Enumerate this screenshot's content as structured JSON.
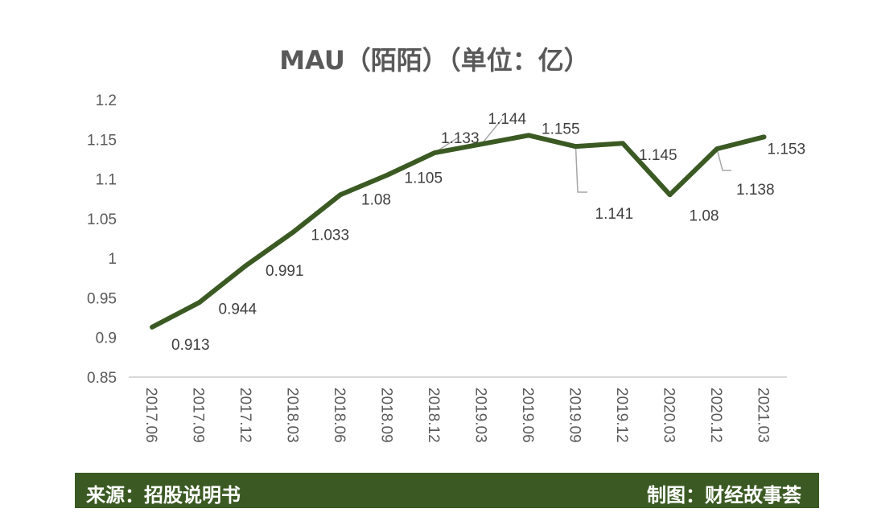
{
  "title": "MAU（陌陌）（单位：亿）",
  "footer": {
    "source": "来源：招股说明书",
    "credit": "制图：财经故事荟"
  },
  "colors": {
    "line": "#3b5a23",
    "footer_bg": "#3b5a23",
    "axis_text": "#595959",
    "axis_line": "#d9d9d9",
    "leader_line": "#a6a6a6"
  },
  "chart_data": {
    "type": "line",
    "title": "MAU（陌陌）（单位：亿）",
    "xlabel": "",
    "ylabel": "",
    "categories": [
      "2017.06",
      "2017.09",
      "2017.12",
      "2018.03",
      "2018.06",
      "2018.09",
      "2018.12",
      "2019.03",
      "2019.06",
      "2019.09",
      "2019.12",
      "2020.03",
      "2020.12",
      "2021.03"
    ],
    "series": [
      {
        "name": "MAU（陌陌）",
        "values": [
          0.913,
          0.944,
          0.991,
          1.033,
          1.08,
          1.105,
          1.133,
          1.144,
          1.155,
          1.141,
          1.145,
          1.08,
          1.138,
          1.153
        ]
      }
    ],
    "ylim": [
      0.85,
      1.2
    ],
    "yticks": [
      "0.85",
      "0.9",
      "0.95",
      "1",
      "1.05",
      "1.1",
      "1.15",
      "1.2"
    ],
    "grid": false,
    "legend": null,
    "data_labels": [
      "0.913",
      "0.944",
      "0.991",
      "1.033",
      "1.08",
      "1.105",
      "1.133",
      "1.144",
      "1.155",
      "1.141",
      "1.145",
      "1.08",
      "1.138",
      "1.153"
    ]
  }
}
